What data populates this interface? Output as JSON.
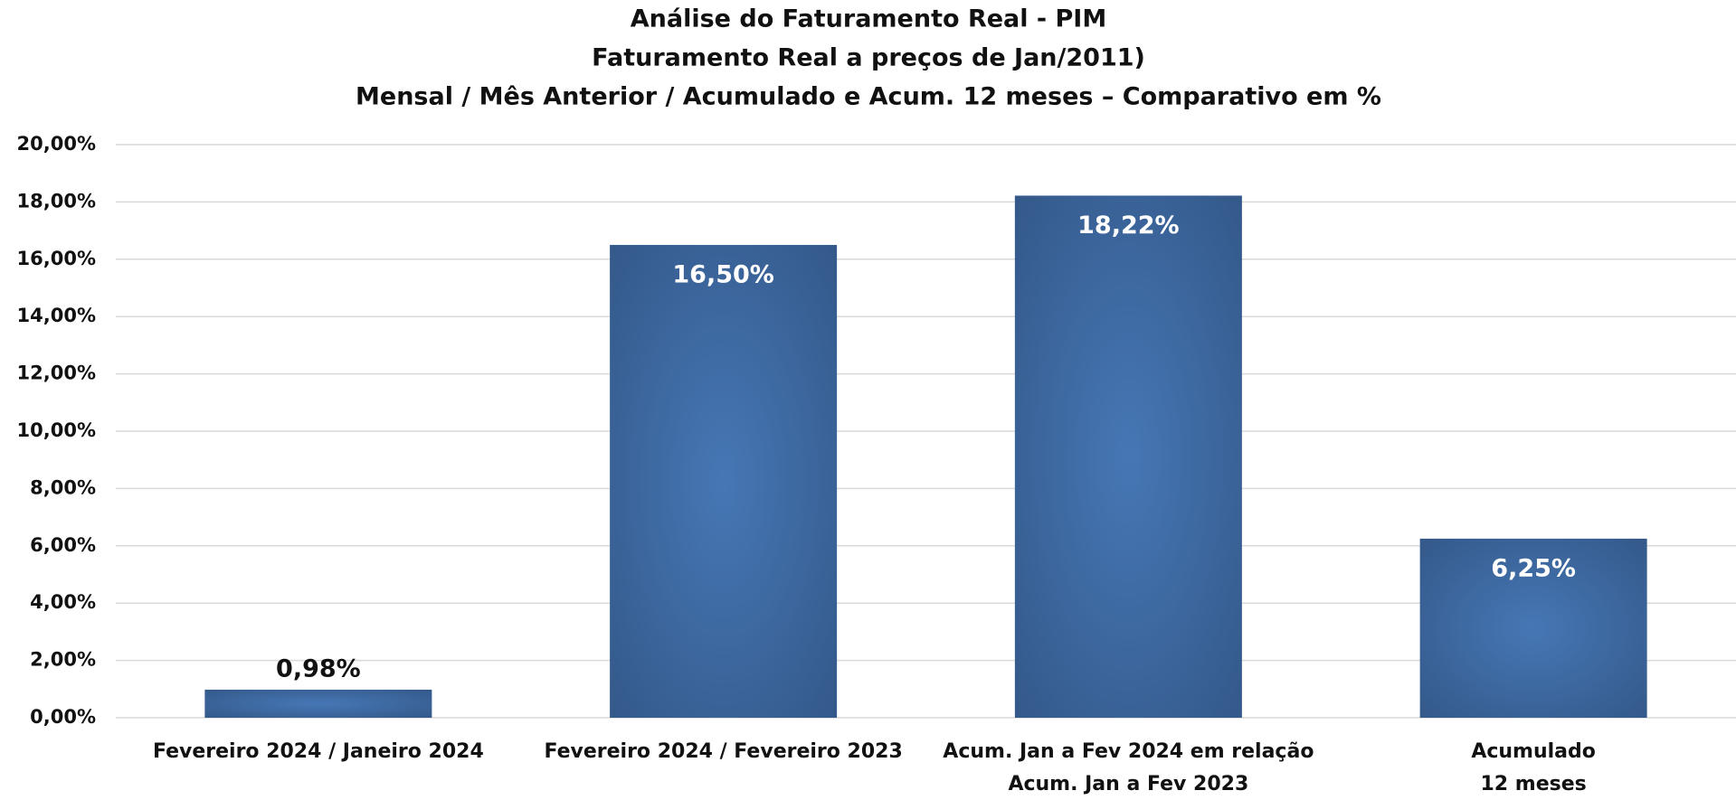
{
  "chart_data": {
    "type": "bar",
    "title": [
      "Análise do Faturamento Real - PIM",
      "Faturamento Real a preços de Jan/2011)",
      "Mensal / Mês Anterior / Acumulado e Acum. 12 meses – Comparativo em %"
    ],
    "categories": [
      [
        "Fevereiro 2024 / Janeiro 2024"
      ],
      [
        "Fevereiro 2024 / Fevereiro 2023"
      ],
      [
        "Acum. Jan a Fev 2024 em relação",
        "Acum. Jan a Fev 2023"
      ],
      [
        "Acumulado",
        "12 meses"
      ]
    ],
    "values": [
      0.98,
      16.5,
      18.22,
      6.25
    ],
    "value_labels": [
      "0,98%",
      "16,50%",
      "18,22%",
      "6,25%"
    ],
    "color": "#3e6ca6",
    "ylim": [
      0,
      20
    ],
    "yticks": [
      {
        "value": 0,
        "label": "0,00%"
      },
      {
        "value": 2,
        "label": "2,00%"
      },
      {
        "value": 4,
        "label": "4,00%"
      },
      {
        "value": 6,
        "label": "6,00%"
      },
      {
        "value": 8,
        "label": "8,00%"
      },
      {
        "value": 10,
        "label": "10,00%"
      },
      {
        "value": 12,
        "label": "12,00%"
      },
      {
        "value": 14,
        "label": "14,00%"
      },
      {
        "value": 16,
        "label": "16,00%"
      },
      {
        "value": 18,
        "label": "18,00%"
      },
      {
        "value": 20,
        "label": "20,00%"
      }
    ],
    "grid": true
  }
}
